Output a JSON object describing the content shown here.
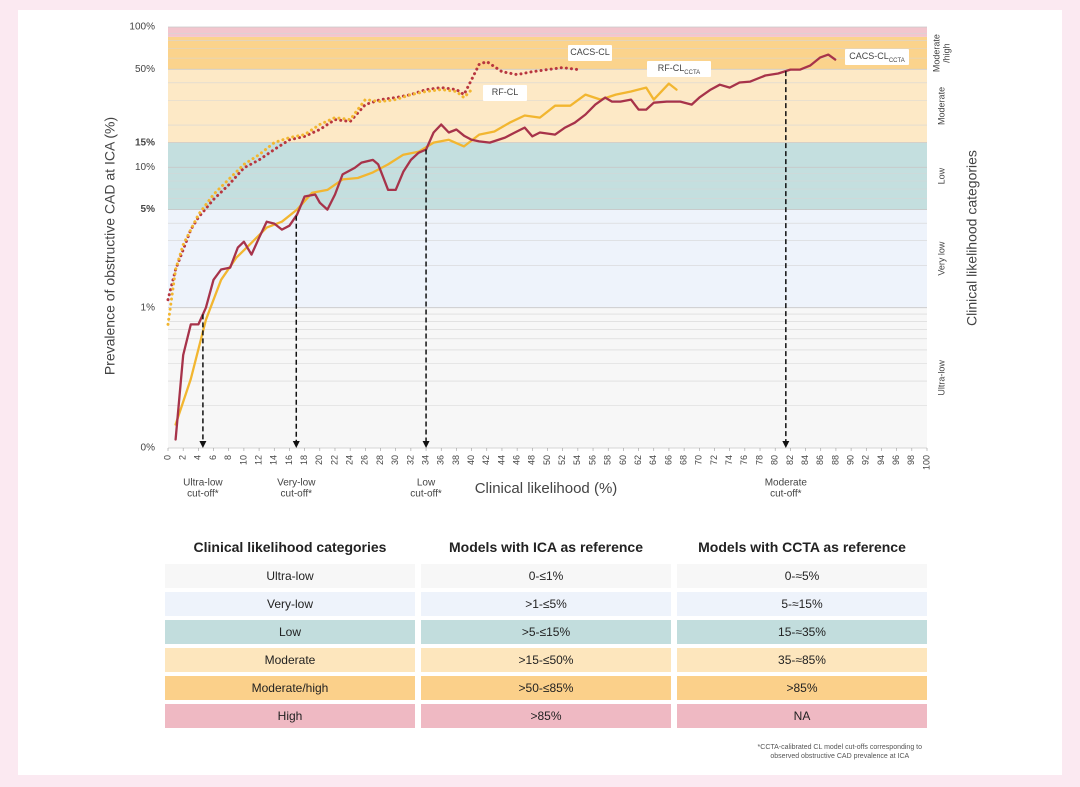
{
  "chart_data": {
    "type": "line",
    "y_label": "Prevalence of obstructive CAD at ICA (%)",
    "x_label": "Clinical likelihood (%)",
    "right_label": "Clinical likelihood categories",
    "log_y": true,
    "ylim": [
      0.1,
      100
    ],
    "yticks": [
      {
        "value": 0.1,
        "label": "0%"
      },
      {
        "value": 1,
        "label": "1%"
      },
      {
        "value": 5,
        "label": "5%",
        "bold": true
      },
      {
        "value": 10,
        "label": "10%"
      },
      {
        "value": 15,
        "label": "15%",
        "bold": true
      },
      {
        "value": 50,
        "label": "50%"
      },
      {
        "value": 100,
        "label": "100%"
      }
    ],
    "minor_yticks": [
      0.2,
      0.3,
      0.4,
      0.5,
      0.6,
      0.7,
      0.8,
      0.9,
      2,
      3,
      4,
      6,
      7,
      8,
      9,
      20,
      30,
      40,
      60,
      70,
      80,
      90
    ],
    "xlim": [
      0,
      100
    ],
    "xticks": [
      0,
      2,
      4,
      6,
      8,
      10,
      12,
      14,
      16,
      18,
      20,
      22,
      24,
      26,
      28,
      30,
      32,
      34,
      36,
      38,
      40,
      42,
      44,
      46,
      48,
      50,
      52,
      54,
      56,
      58,
      60,
      62,
      64,
      66,
      68,
      70,
      72,
      74,
      76,
      78,
      80,
      82,
      84,
      86,
      88,
      90,
      92,
      94,
      96,
      98,
      100
    ],
    "bands": [
      {
        "name": [
          "Ultra-low"
        ],
        "range": [
          0.1,
          1
        ],
        "color": "#f7f7f7"
      },
      {
        "name": [
          "Very low"
        ],
        "range": [
          1,
          5
        ],
        "color": "#eef3fb"
      },
      {
        "name": [
          "Low"
        ],
        "range": [
          5,
          15
        ],
        "color": "#c4dfdf"
      },
      {
        "name": [
          "Moderate"
        ],
        "range": [
          15,
          50
        ],
        "color": "#fde9c6"
      },
      {
        "name": [
          "Moderate",
          "/high"
        ],
        "range": [
          50,
          85
        ],
        "color": "#fbd38c"
      },
      {
        "name": null,
        "range": [
          85,
          100
        ],
        "color": "#f2c6ce"
      }
    ],
    "series": [
      {
        "name": "CACS-CL",
        "subscript": null,
        "color": "#b8363f",
        "dashed": true,
        "x": [
          0,
          1,
          2,
          3,
          4,
          6,
          8,
          10,
          12,
          14,
          16,
          18,
          20,
          22,
          24,
          26,
          28,
          30,
          32,
          34,
          36,
          38,
          39,
          40,
          41,
          42,
          44,
          46,
          48,
          50,
          52,
          54
        ],
        "values": [
          1.14,
          1.87,
          2.59,
          3.6,
          4.4,
          5.9,
          7.5,
          9.9,
          11.3,
          13.4,
          15.7,
          16.6,
          18.6,
          21.9,
          21.2,
          28.0,
          30.4,
          31.4,
          33.0,
          35.8,
          37.0,
          35.8,
          33.0,
          42.2,
          54.2,
          56.7,
          48.0,
          45.8,
          48.0,
          49.7,
          51.4,
          49.7
        ]
      },
      {
        "name": "RF-CL",
        "subscript": null,
        "color": "#f2b630",
        "dashed": true,
        "x": [
          0,
          1,
          2,
          4,
          6,
          8,
          10,
          12,
          14,
          16,
          18,
          20,
          22,
          24,
          26,
          28,
          30,
          32,
          34,
          36,
          38,
          39,
          40
        ],
        "values": [
          0.76,
          1.87,
          2.81,
          4.6,
          6.4,
          8.2,
          10.5,
          12.3,
          15.0,
          16.3,
          17.1,
          20.2,
          22.6,
          21.9,
          30.4,
          29.4,
          30.4,
          33.0,
          34.7,
          35.8,
          34.7,
          31.4,
          35.8
        ]
      },
      {
        "name": "RF-CL",
        "subscript": "CCTA",
        "color": "#f2b630",
        "dashed": false,
        "x": [
          1,
          3,
          5,
          7,
          9,
          11,
          13,
          15,
          17,
          19,
          21,
          23,
          25,
          27,
          29,
          31,
          33,
          35,
          37,
          39,
          41,
          43,
          45,
          47,
          49,
          51,
          53,
          55,
          57,
          59,
          61,
          63,
          64,
          66,
          67
        ],
        "values": [
          0.147,
          0.31,
          0.82,
          1.58,
          2.27,
          2.9,
          3.72,
          4.1,
          5.0,
          6.6,
          6.9,
          8.2,
          8.4,
          9.2,
          10.5,
          12.3,
          12.9,
          15.0,
          15.7,
          14.1,
          17.1,
          18.0,
          20.8,
          23.4,
          22.6,
          27.5,
          27.5,
          33.0,
          30.4,
          33.0,
          34.7,
          37.0,
          30.4,
          39.5,
          35.8
        ]
      },
      {
        "name": "CACS-CL",
        "subscript": "CCTA",
        "color": "#a7334a",
        "dashed": false,
        "x": [
          1,
          2,
          3,
          4,
          5,
          6,
          7,
          8.2,
          9.2,
          10,
          11,
          12,
          13,
          14,
          15,
          16,
          17,
          18,
          19.4,
          20,
          21,
          22,
          23,
          24.6,
          25.5,
          27,
          27.7,
          29,
          30,
          31,
          32,
          33,
          34,
          35,
          36,
          37,
          38,
          39,
          40,
          41,
          42.4,
          44.4,
          45.7,
          47,
          48,
          49,
          51,
          52.3,
          53.6,
          55,
          56.3,
          57.6,
          58.5,
          59.6,
          61,
          62,
          63,
          64,
          65.7,
          67.5,
          69,
          70,
          71.5,
          72.7,
          74,
          75.3,
          76.7,
          78.7,
          80.4,
          82,
          83.3,
          84.6,
          85.9,
          87,
          87.9
        ],
        "values": [
          0.115,
          0.46,
          0.76,
          0.76,
          1.0,
          1.58,
          1.87,
          1.93,
          2.68,
          2.95,
          2.39,
          3.15,
          4.1,
          3.97,
          3.6,
          3.84,
          4.6,
          6.2,
          6.4,
          5.6,
          5.0,
          6.4,
          8.9,
          9.9,
          10.8,
          11.3,
          10.5,
          6.9,
          6.9,
          9.3,
          11.3,
          12.7,
          13.4,
          17.7,
          20.2,
          17.7,
          18.6,
          16.8,
          15.7,
          15.3,
          15.0,
          16.3,
          17.7,
          19.2,
          16.6,
          17.7,
          17.1,
          19.2,
          20.8,
          23.8,
          28.0,
          31.4,
          29.4,
          29.4,
          30.4,
          25.8,
          25.8,
          28.9,
          29.4,
          29.4,
          28.0,
          31.4,
          35.8,
          38.8,
          37.0,
          40.2,
          40.8,
          45.1,
          46.6,
          49.7,
          49.7,
          53.1,
          60.5,
          63.6,
          58.6
        ]
      }
    ],
    "cutoffs": [
      {
        "x": 4.6,
        "label": [
          "Ultra-low",
          "cut-off*"
        ]
      },
      {
        "x": 16.9,
        "label": [
          "Very-low",
          "cut-off*"
        ]
      },
      {
        "x": 34,
        "label": [
          "Low",
          "cut-off*"
        ]
      },
      {
        "x": 81.4,
        "label": [
          "Moderate",
          "cut-off*"
        ]
      }
    ]
  },
  "table": {
    "header": [
      "Clinical likelihood categories",
      "Models with ICA as reference",
      "Models with CCTA as reference"
    ],
    "rows": [
      [
        "Ultra-low",
        "0-≤1%",
        "0-≈5%"
      ],
      [
        "Very-low",
        ">1-≤5%",
        "5-≈15%"
      ],
      [
        "Low",
        ">5-≤15%",
        "15-≈35%"
      ],
      [
        "Moderate",
        ">15-≤50%",
        "35-≈85%"
      ],
      [
        "Moderate/high",
        ">50-≤85%",
        ">85%"
      ],
      [
        "High",
        ">85%",
        "NA"
      ]
    ],
    "colors": [
      "#f7f7f7",
      "#eef3fb",
      "#c2dddd",
      "#fde6bd",
      "#fbd08a",
      "#efb9c3"
    ]
  },
  "footnote": [
    "*CCTA-calibrated CL model cut-offs corresponding to",
    "observed obstructive CAD prevalence at ICA"
  ]
}
